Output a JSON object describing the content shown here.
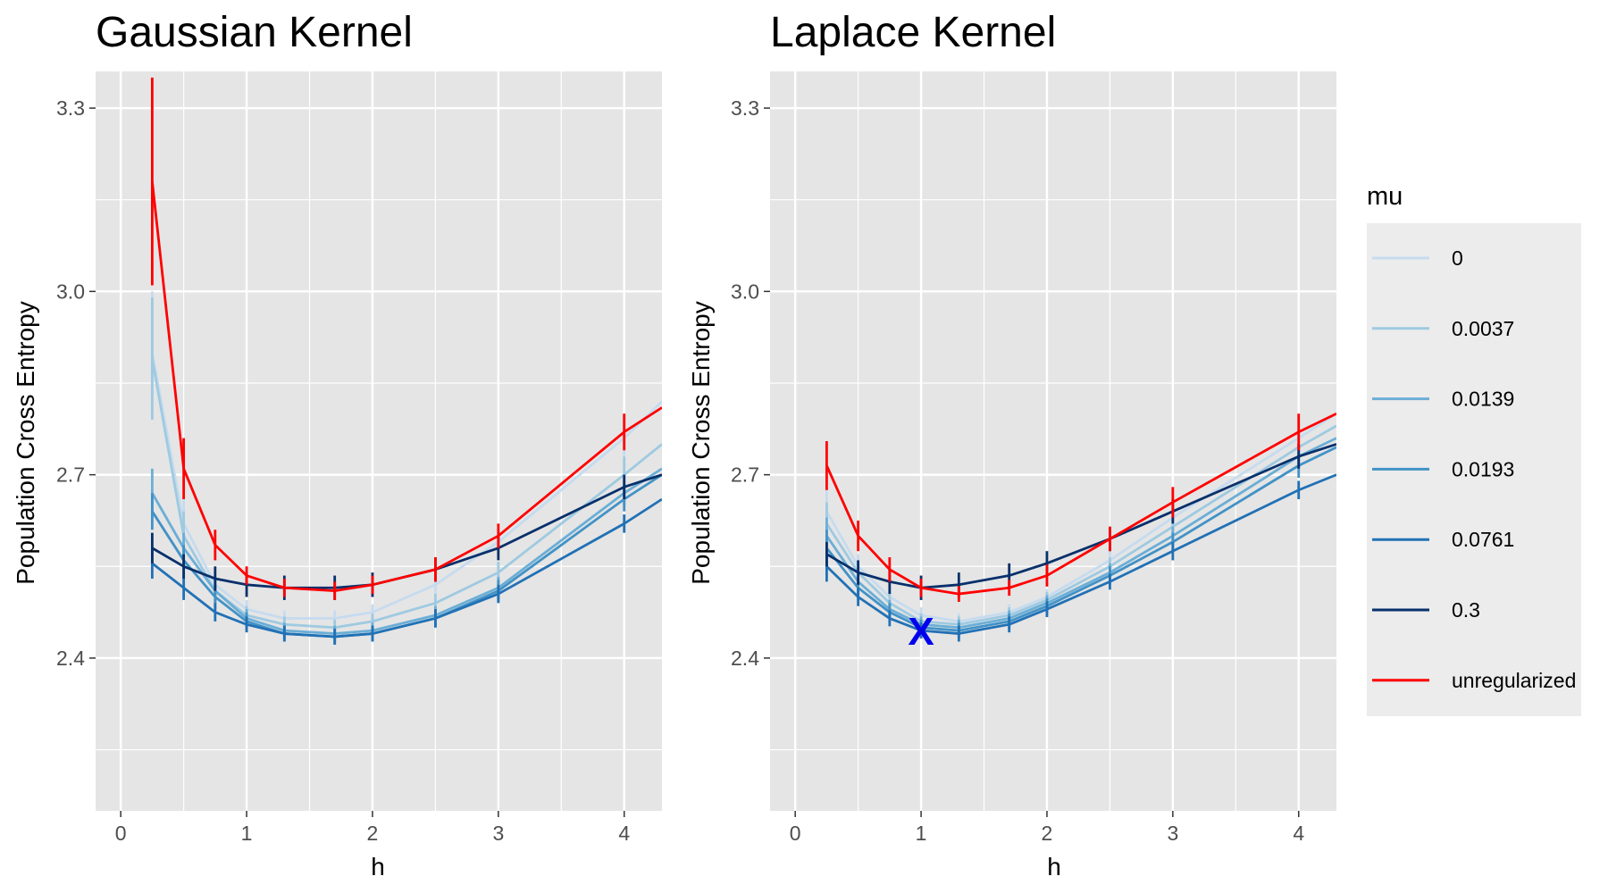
{
  "chart_data": [
    {
      "type": "line",
      "title": "Gaussian Kernel",
      "xlabel": "h",
      "ylabel": "Population Cross Entropy",
      "xlim": [
        -0.2,
        4.3
      ],
      "ylim": [
        2.15,
        3.36
      ],
      "xticks": [
        "0",
        "1",
        "2",
        "3",
        "4"
      ],
      "yticks": [
        "2.4",
        "2.7",
        "3.0",
        "3.3"
      ],
      "x": [
        0.25,
        0.5,
        0.75,
        1.0,
        1.3,
        1.7,
        2.0,
        2.5,
        3.0,
        4.0,
        4.3
      ],
      "series": [
        {
          "name": "0",
          "values": [
            2.9,
            2.62,
            2.52,
            2.48,
            2.465,
            2.465,
            2.475,
            2.52,
            2.59,
            2.76,
            2.82
          ],
          "err": [
            0.1,
            0.04,
            0.02,
            0.015,
            0.013,
            0.013,
            0.013,
            0.015,
            0.018,
            0.03,
            null
          ]
        },
        {
          "name": "0.0037",
          "values": [
            2.89,
            2.6,
            2.51,
            2.47,
            2.455,
            2.45,
            2.46,
            2.49,
            2.54,
            2.7,
            2.75
          ],
          "err": [
            0.1,
            0.04,
            0.02,
            0.015,
            0.013,
            0.013,
            0.013,
            0.015,
            0.018,
            0.03,
            null
          ]
        },
        {
          "name": "0.0139",
          "values": [
            2.67,
            2.58,
            2.51,
            2.465,
            2.445,
            2.44,
            2.445,
            2.47,
            2.515,
            2.67,
            2.71
          ],
          "err": [
            0.04,
            0.025,
            0.02,
            0.015,
            0.013,
            0.013,
            0.013,
            0.015,
            0.018,
            0.02,
            null
          ]
        },
        {
          "name": "0.0193",
          "values": [
            2.64,
            2.56,
            2.5,
            2.46,
            2.44,
            2.435,
            2.44,
            2.465,
            2.51,
            2.66,
            2.7
          ],
          "err": [
            0.03,
            0.025,
            0.02,
            0.015,
            0.013,
            0.013,
            0.013,
            0.015,
            0.018,
            0.02,
            null
          ]
        },
        {
          "name": "0.0761",
          "values": [
            2.555,
            2.515,
            2.475,
            2.455,
            2.44,
            2.435,
            2.44,
            2.465,
            2.505,
            2.62,
            2.66
          ],
          "err": [
            0.025,
            0.02,
            0.015,
            0.013,
            0.013,
            0.013,
            0.013,
            0.015,
            0.015,
            0.015,
            null
          ]
        },
        {
          "name": "0.3",
          "values": [
            2.58,
            2.55,
            2.53,
            2.52,
            2.515,
            2.515,
            2.52,
            2.545,
            2.58,
            2.68,
            2.7
          ],
          "err": [
            0.025,
            0.02,
            0.02,
            0.02,
            0.02,
            0.02,
            0.02,
            0.02,
            0.02,
            0.02,
            null
          ]
        },
        {
          "name": "unregularized",
          "values": [
            3.18,
            2.71,
            2.585,
            2.535,
            2.515,
            2.51,
            2.52,
            2.545,
            2.6,
            2.77,
            2.81
          ],
          "err": [
            0.17,
            0.05,
            0.025,
            0.015,
            0.015,
            0.015,
            0.015,
            0.02,
            0.02,
            0.03,
            null
          ]
        }
      ]
    },
    {
      "type": "line",
      "title": "Laplace Kernel",
      "xlabel": "h",
      "ylabel": "Population Cross Entropy",
      "xlim": [
        -0.2,
        4.3
      ],
      "ylim": [
        2.15,
        3.36
      ],
      "xticks": [
        "0",
        "1",
        "2",
        "3",
        "4"
      ],
      "yticks": [
        "2.4",
        "2.7",
        "3.0",
        "3.3"
      ],
      "x": [
        0.25,
        0.5,
        0.75,
        1.0,
        1.3,
        1.7,
        2.0,
        2.5,
        3.0,
        4.0,
        4.3
      ],
      "series": [
        {
          "name": "0",
          "values": [
            2.64,
            2.55,
            2.5,
            2.47,
            2.46,
            2.475,
            2.5,
            2.56,
            2.63,
            2.76,
            2.8
          ],
          "err": [
            0.035,
            0.02,
            0.015,
            0.013,
            0.013,
            0.013,
            0.013,
            0.015,
            0.015,
            0.02,
            null
          ]
        },
        {
          "name": "0.0037",
          "values": [
            2.62,
            2.54,
            2.49,
            2.46,
            2.455,
            2.47,
            2.495,
            2.55,
            2.615,
            2.745,
            2.78
          ],
          "err": [
            0.035,
            0.02,
            0.015,
            0.013,
            0.013,
            0.013,
            0.013,
            0.015,
            0.015,
            0.02,
            null
          ]
        },
        {
          "name": "0.0139",
          "values": [
            2.6,
            2.525,
            2.48,
            2.455,
            2.45,
            2.465,
            2.49,
            2.54,
            2.6,
            2.73,
            2.76
          ],
          "err": [
            0.03,
            0.02,
            0.015,
            0.013,
            0.013,
            0.013,
            0.013,
            0.015,
            0.015,
            0.02,
            null
          ]
        },
        {
          "name": "0.0193",
          "values": [
            2.58,
            2.515,
            2.475,
            2.45,
            2.445,
            2.46,
            2.485,
            2.535,
            2.59,
            2.715,
            2.745
          ],
          "err": [
            0.03,
            0.02,
            0.015,
            0.013,
            0.013,
            0.013,
            0.013,
            0.015,
            0.015,
            0.02,
            null
          ]
        },
        {
          "name": "0.0761",
          "values": [
            2.55,
            2.5,
            2.465,
            2.445,
            2.44,
            2.455,
            2.48,
            2.525,
            2.575,
            2.675,
            2.7
          ],
          "err": [
            0.025,
            0.015,
            0.013,
            0.013,
            0.013,
            0.013,
            0.013,
            0.013,
            0.015,
            0.015,
            null
          ]
        },
        {
          "name": "0.3",
          "values": [
            2.57,
            2.54,
            2.525,
            2.515,
            2.52,
            2.535,
            2.555,
            2.595,
            2.64,
            2.73,
            2.75
          ],
          "err": [
            0.02,
            0.02,
            0.02,
            0.02,
            0.02,
            0.02,
            0.02,
            0.02,
            0.02,
            0.02,
            null
          ]
        },
        {
          "name": "unregularized",
          "values": [
            2.715,
            2.6,
            2.545,
            2.515,
            2.505,
            2.515,
            2.535,
            2.595,
            2.655,
            2.77,
            2.8
          ],
          "err": [
            0.04,
            0.025,
            0.02,
            0.015,
            0.013,
            0.013,
            0.018,
            0.02,
            0.025,
            0.03,
            null
          ]
        }
      ],
      "marker": {
        "label": "X",
        "x": 1.0,
        "y": 2.445,
        "color": "#0000ee"
      }
    }
  ],
  "legend": {
    "title": "mu",
    "placement": "right",
    "entries": [
      "0",
      "0.0037",
      "0.0139",
      "0.0193",
      "0.0761",
      "0.3",
      "unregularized"
    ],
    "colors": [
      "#c6dbef",
      "#9ecae1",
      "#6baed6",
      "#4292c6",
      "#2171b5",
      "#08306b",
      "#ff0000"
    ]
  },
  "style": {
    "panel_background": "#e5e5e5",
    "grid_color": "#ffffff",
    "tick_label_color": "#4d4d4d"
  }
}
